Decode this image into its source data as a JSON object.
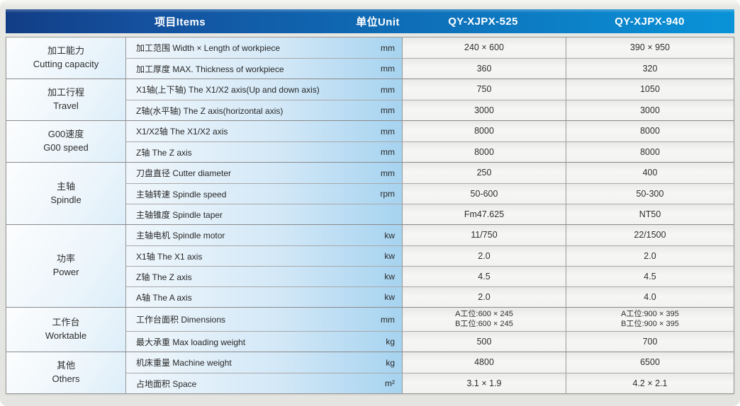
{
  "header": {
    "items_label": "项目Items",
    "unit_label": "单位Unit",
    "model1": "QY-XJPX-525",
    "model2": "QY-XJPX-940"
  },
  "groups": [
    {
      "name_cn": "加工能力",
      "name_en": "Cutting capacity",
      "rows": [
        {
          "item": "加工范围 Width × Length of workpiece",
          "unit": "mm",
          "v1": "240 × 600",
          "v2": "390 × 950"
        },
        {
          "item": "加工厚度 MAX. Thickness of workpiece",
          "unit": "mm",
          "v1": "360",
          "v2": "320"
        }
      ]
    },
    {
      "name_cn": "加工行程",
      "name_en": "Travel",
      "rows": [
        {
          "item": "X1轴(上下轴) The X1/X2 axis(Up and down axis)",
          "unit": "mm",
          "v1": "750",
          "v2": "1050"
        },
        {
          "item": "Z轴(水平轴)  The Z axis(horizontal axis)",
          "unit": "mm",
          "v1": "3000",
          "v2": "3000"
        }
      ]
    },
    {
      "name_cn": "G00速度",
      "name_en": "G00 speed",
      "rows": [
        {
          "item": "X1/X2轴 The X1/X2 axis",
          "unit": "mm",
          "v1": "8000",
          "v2": "8000"
        },
        {
          "item": "Z轴  The Z axis",
          "unit": "mm",
          "v1": "8000",
          "v2": "8000"
        }
      ]
    },
    {
      "name_cn": "主轴",
      "name_en": "Spindle",
      "rows": [
        {
          "item": "刀盘直径 Cutter diameter",
          "unit": "mm",
          "v1": "250",
          "v2": "400"
        },
        {
          "item": "主轴转速 Spindle speed",
          "unit": "rpm",
          "v1": "50-600",
          "v2": "50-300"
        },
        {
          "item": "主轴锥度 Spindle  taper",
          "unit": "",
          "v1": "Fm47.625",
          "v2": "NT50"
        }
      ]
    },
    {
      "name_cn": "功率",
      "name_en": "Power",
      "rows": [
        {
          "item": "主轴电机 Spindle motor",
          "unit": "kw",
          "v1": "11/750",
          "v2": "22/1500"
        },
        {
          "item": "X1轴 The X1 axis",
          "unit": "kw",
          "v1": "2.0",
          "v2": "2.0"
        },
        {
          "item": "Z轴  The Z axis",
          "unit": "kw",
          "v1": "4.5",
          "v2": "4.5"
        },
        {
          "item": "A轴  The A axis",
          "unit": "kw",
          "v1": "2.0",
          "v2": "4.0"
        }
      ]
    },
    {
      "name_cn": "工作台",
      "name_en": "Worktable",
      "rows": [
        {
          "item": "工作台面积 Dimensions",
          "unit": "mm",
          "v1": "A工位:600 × 245\nB工位:600 × 245",
          "v2": "A工位:900 × 395\nB工位:900 × 395"
        },
        {
          "item": "最大承重 Max loading weight",
          "unit": "kg",
          "v1": "500",
          "v2": "700"
        }
      ]
    },
    {
      "name_cn": "其他",
      "name_en": "Others",
      "rows": [
        {
          "item": "机床重量 Machine weight",
          "unit": "kg",
          "v1": "4800",
          "v2": "6500"
        },
        {
          "item": "占地面积 Space",
          "unit": "m²",
          "v1": "3.1 × 1.9",
          "v2": "4.2 × 2.1"
        }
      ]
    }
  ],
  "colors": {
    "header_gradient_left": "#123d85",
    "header_gradient_right": "#0a93d8",
    "item_cell_blue": "#a6d3f0",
    "value_cell_gray": "#f2f2f0",
    "page_background": "#e4e5e1",
    "grid_line": "#989898"
  }
}
